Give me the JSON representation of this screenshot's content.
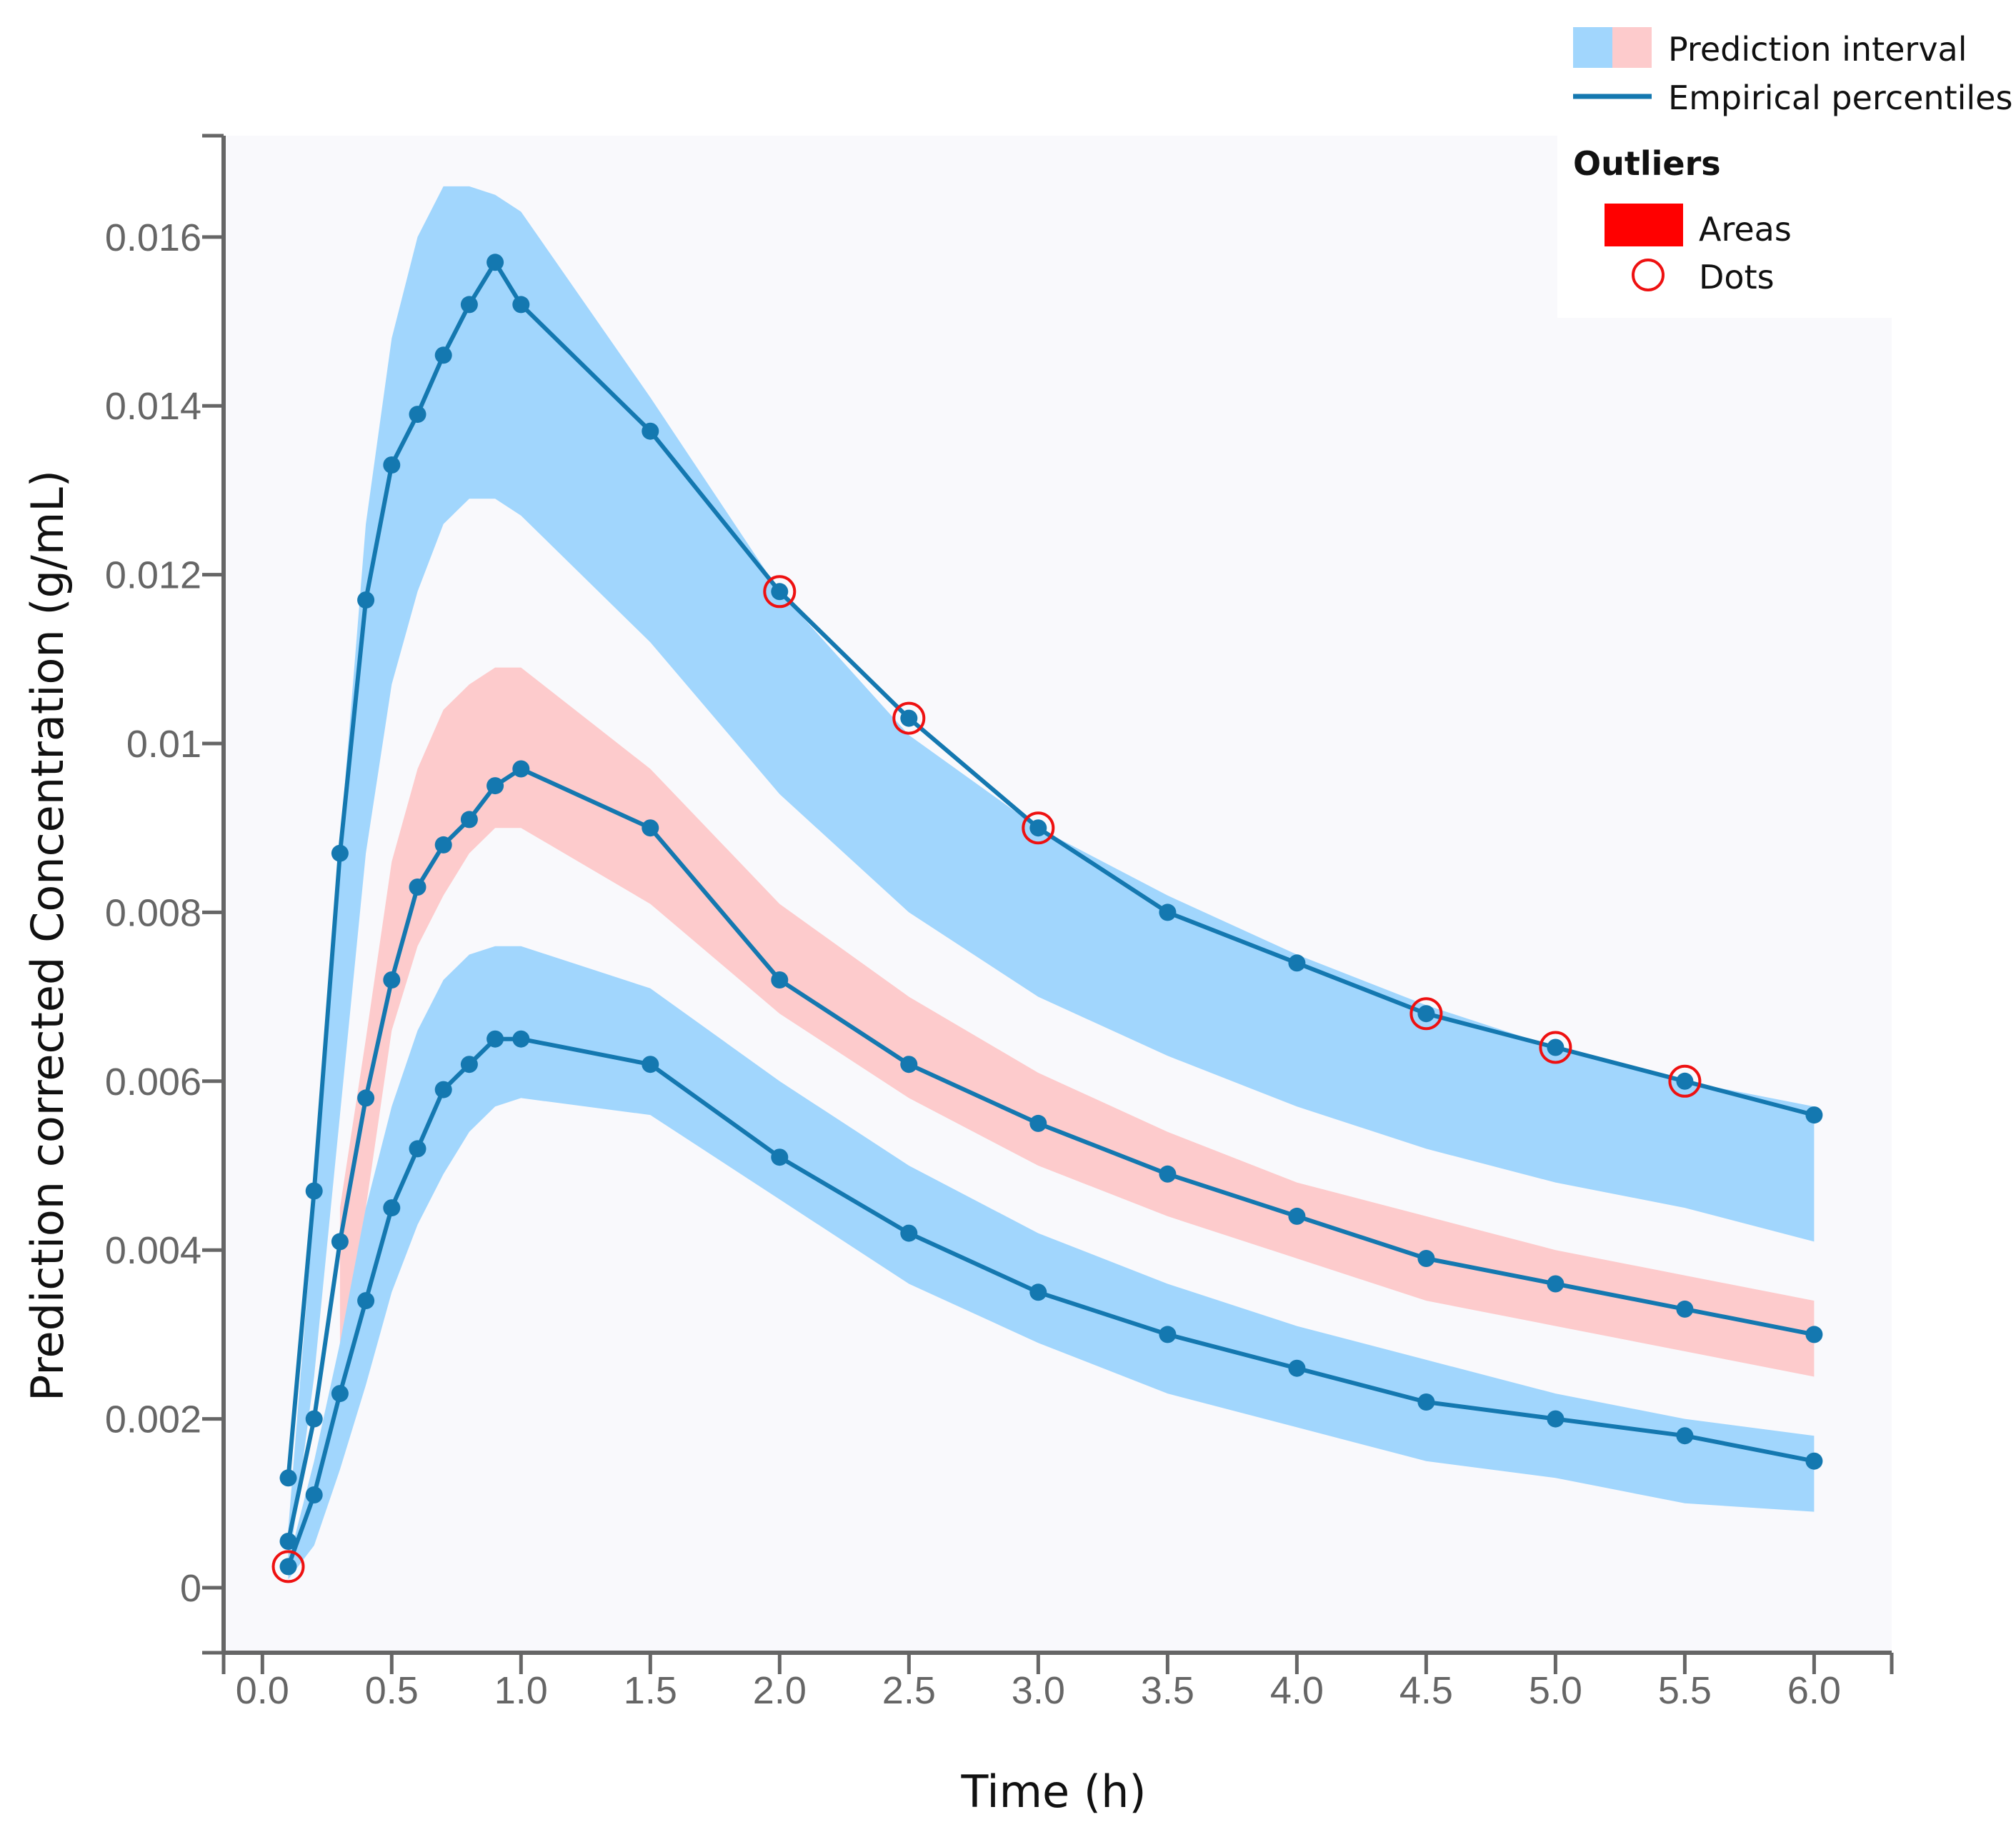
{
  "chart_data": {
    "type": "line",
    "title": "",
    "xlabel": "Time (h)",
    "ylabel": "Prediction corrected Concentration (g/mL)",
    "xlim": [
      -0.15,
      6.3
    ],
    "ylim": [
      -0.00077,
      0.0172
    ],
    "x_ticks": [
      0.0,
      0.5,
      1.0,
      1.5,
      2.0,
      2.5,
      3.0,
      3.5,
      4.0,
      4.5,
      5.0,
      5.5,
      6.0
    ],
    "x_tick_labels": [
      "0.0",
      "0.5",
      "1.0",
      "1.5",
      "2.0",
      "2.5",
      "3.0",
      "3.5",
      "4.0",
      "4.5",
      "5.0",
      "5.5",
      "6.0"
    ],
    "y_ticks": [
      0,
      0.002,
      0.004,
      0.006,
      0.008,
      0.01,
      0.012,
      0.014,
      0.016
    ],
    "y_tick_labels": [
      "0",
      "0.002",
      "0.004",
      "0.006",
      "0.008",
      "0.01",
      "0.012",
      "0.014",
      "0.016"
    ],
    "grid": false,
    "background_color": "#f9f9fc",
    "colors": {
      "band_normal": "#a1d6fd",
      "band_outlier": "#fdcbcc",
      "line": "#1478b0",
      "outlier_dot": "#ee1111",
      "legend_area": "#ff0000",
      "axis": "#666666"
    },
    "legend": {
      "position": "top-right",
      "prediction_interval_label": "Prediction interval",
      "empirical_percentiles_label": "Empirical percentiles",
      "outliers_heading": "Outliers",
      "areas_label": "Areas",
      "dots_label": "Dots"
    },
    "bands": [
      {
        "color": "blue",
        "x": [
          0.1,
          0.2,
          0.3,
          0.4,
          0.5,
          0.6,
          0.7,
          0.8,
          0.9,
          1.0,
          1.5,
          2.0,
          2.5,
          3.0,
          3.5,
          4.0,
          4.5,
          5.0,
          5.5,
          6.0
        ],
        "upper": [
          0.0007,
          0.0045,
          0.0088,
          0.0126,
          0.0148,
          0.016,
          0.0166,
          0.0166,
          0.0165,
          0.0163,
          0.0141,
          0.0118,
          0.0101,
          0.009,
          0.0082,
          0.0075,
          0.0069,
          0.0064,
          0.006,
          0.0057
        ],
        "lower": [
          0.0002,
          0.0025,
          0.0056,
          0.0087,
          0.0107,
          0.0118,
          0.0126,
          0.0129,
          0.0129,
          0.0127,
          0.0112,
          0.0094,
          0.008,
          0.007,
          0.0063,
          0.0057,
          0.0052,
          0.0048,
          0.0045,
          0.0041
        ]
      },
      {
        "color": "red",
        "x": [
          0.3,
          0.4,
          0.5,
          0.6,
          0.7,
          0.8,
          0.9,
          1.0,
          1.5,
          2.0,
          2.5,
          3.0,
          3.5,
          4.0,
          4.5,
          5.0,
          5.5,
          6.0
        ],
        "upper": [
          0.0045,
          0.0065,
          0.0086,
          0.0097,
          0.0104,
          0.0107,
          0.0109,
          0.0109,
          0.0097,
          0.0081,
          0.007,
          0.0061,
          0.0054,
          0.0048,
          0.0044,
          0.004,
          0.0037,
          0.0034
        ],
        "lower": [
          0.0024,
          0.0045,
          0.0066,
          0.0076,
          0.0082,
          0.0087,
          0.009,
          0.009,
          0.0081,
          0.0068,
          0.0058,
          0.005,
          0.0044,
          0.0039,
          0.0034,
          0.0031,
          0.0028,
          0.0025
        ]
      },
      {
        "color": "blue",
        "x": [
          0.1,
          0.2,
          0.3,
          0.4,
          0.5,
          0.6,
          0.7,
          0.8,
          0.9,
          1.0,
          1.5,
          2.0,
          2.5,
          3.0,
          3.5,
          4.0,
          4.5,
          5.0,
          5.5,
          6.0
        ],
        "upper": [
          0.0003,
          0.0015,
          0.0029,
          0.0045,
          0.0057,
          0.0066,
          0.0072,
          0.0075,
          0.0076,
          0.0076,
          0.0071,
          0.006,
          0.005,
          0.0042,
          0.0036,
          0.0031,
          0.0027,
          0.0023,
          0.002,
          0.0018
        ],
        "lower": [
          0.0001,
          0.0005,
          0.0014,
          0.0024,
          0.0035,
          0.0043,
          0.0049,
          0.0054,
          0.0057,
          0.0058,
          0.0056,
          0.0046,
          0.0036,
          0.0029,
          0.0023,
          0.0019,
          0.0015,
          0.0013,
          0.001,
          0.0009
        ]
      }
    ],
    "series": [
      {
        "x": [
          0.1,
          0.2,
          0.3,
          0.4,
          0.5,
          0.6,
          0.7,
          0.8,
          0.9,
          1.0,
          1.5,
          2.0,
          2.5,
          3.0,
          3.5,
          4.0,
          4.5,
          5.0,
          5.5,
          6.0
        ],
        "y": [
          0.0013,
          0.0047,
          0.0087,
          0.0117,
          0.0133,
          0.0139,
          0.0146,
          0.0152,
          0.0157,
          0.0152,
          0.0137,
          0.0118,
          0.0103,
          0.009,
          0.008,
          0.0074,
          0.0068,
          0.0064,
          0.006,
          0.0056
        ],
        "outliers": [
          false,
          false,
          false,
          false,
          false,
          false,
          false,
          false,
          false,
          false,
          false,
          true,
          true,
          true,
          false,
          false,
          true,
          true,
          true,
          false
        ]
      },
      {
        "x": [
          0.1,
          0.2,
          0.3,
          0.4,
          0.5,
          0.6,
          0.7,
          0.8,
          0.9,
          1.0,
          1.5,
          2.0,
          2.5,
          3.0,
          3.5,
          4.0,
          4.5,
          5.0,
          5.5,
          6.0
        ],
        "y": [
          0.00055,
          0.002,
          0.0041,
          0.0058,
          0.0072,
          0.0083,
          0.0088,
          0.0091,
          0.0095,
          0.0097,
          0.009,
          0.0072,
          0.0062,
          0.0055,
          0.0049,
          0.0044,
          0.0039,
          0.0036,
          0.0033,
          0.003
        ],
        "outliers": [
          false,
          false,
          false,
          false,
          false,
          false,
          false,
          false,
          false,
          false,
          false,
          false,
          false,
          false,
          false,
          false,
          false,
          false,
          false,
          false
        ]
      },
      {
        "x": [
          0.1,
          0.2,
          0.3,
          0.4,
          0.5,
          0.6,
          0.7,
          0.8,
          0.9,
          1.0,
          1.5,
          2.0,
          2.5,
          3.0,
          3.5,
          4.0,
          4.5,
          5.0,
          5.5,
          6.0
        ],
        "y": [
          0.00025,
          0.0011,
          0.0023,
          0.0034,
          0.0045,
          0.0052,
          0.0059,
          0.0062,
          0.0065,
          0.0065,
          0.0062,
          0.0051,
          0.0042,
          0.0035,
          0.003,
          0.0026,
          0.0022,
          0.002,
          0.0018,
          0.0015
        ],
        "outliers": [
          true,
          false,
          false,
          false,
          false,
          false,
          false,
          false,
          false,
          false,
          false,
          false,
          false,
          false,
          false,
          false,
          false,
          false,
          false,
          false
        ]
      }
    ]
  }
}
